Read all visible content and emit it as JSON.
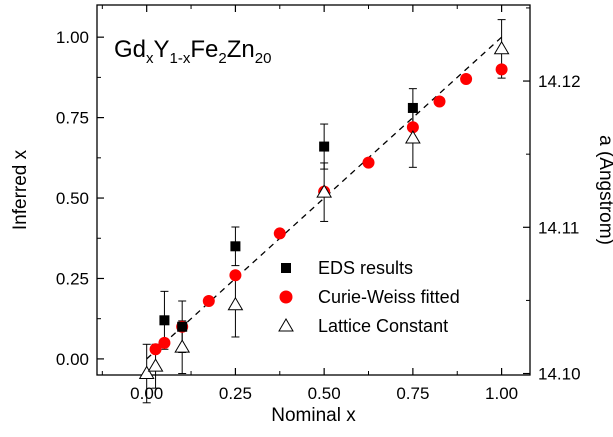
{
  "chart_data": {
    "type": "scatter",
    "title_parts": [
      "Gd",
      "x",
      "Y",
      "1-x",
      "Fe",
      "2",
      "Zn",
      "20"
    ],
    "xlabel": "Nominal x",
    "ylabel": "Inferred x",
    "y2label": "a (Angstrom)",
    "xlim": [
      -0.14,
      1.08
    ],
    "ylim": [
      -0.05,
      1.1
    ],
    "y2lim": [
      14.0999,
      14.1252
    ],
    "x_ticks": [
      0.0,
      0.25,
      0.5,
      0.75,
      1.0
    ],
    "x_tick_labels": [
      "0.00",
      "0.25",
      "0.50",
      "0.75",
      "1.00"
    ],
    "y_ticks": [
      0.0,
      0.25,
      0.5,
      0.75,
      1.0
    ],
    "y_tick_labels": [
      "0.00",
      "0.25",
      "0.50",
      "0.75",
      "1.00"
    ],
    "y2_ticks": [
      14.1,
      14.11,
      14.12
    ],
    "y2_tick_labels": [
      "14.10",
      "14.11",
      "14.12"
    ],
    "grid": false,
    "legend_position": "center-right",
    "reference_line": {
      "style": "dashed",
      "x": [
        0,
        1
      ],
      "y": [
        0,
        1
      ]
    },
    "series": [
      {
        "name": "EDS results",
        "marker": "square",
        "color": "#000000",
        "axis": "left",
        "points": [
          {
            "x": 0.05,
            "y": 0.12,
            "err": 0.09
          },
          {
            "x": 0.1,
            "y": 0.1,
            "err": 0.08
          },
          {
            "x": 0.25,
            "y": 0.35,
            "err": 0.06
          },
          {
            "x": 0.5,
            "y": 0.66,
            "err": 0.07
          },
          {
            "x": 0.75,
            "y": 0.78,
            "err": 0.06
          }
        ]
      },
      {
        "name": "Curie-Weiss fitted",
        "marker": "circle",
        "color": "#ff0000",
        "axis": "left",
        "points": [
          {
            "x": 0.025,
            "y": 0.03
          },
          {
            "x": 0.05,
            "y": 0.05
          },
          {
            "x": 0.1,
            "y": 0.1
          },
          {
            "x": 0.175,
            "y": 0.18
          },
          {
            "x": 0.25,
            "y": 0.26
          },
          {
            "x": 0.375,
            "y": 0.39
          },
          {
            "x": 0.5,
            "y": 0.52
          },
          {
            "x": 0.625,
            "y": 0.61
          },
          {
            "x": 0.75,
            "y": 0.72
          },
          {
            "x": 0.825,
            "y": 0.8
          },
          {
            "x": 0.9,
            "y": 0.87
          },
          {
            "x": 1.0,
            "y": 0.9
          }
        ]
      },
      {
        "name": "Lattice Constant",
        "marker": "triangle-open",
        "color": "#000000",
        "axis": "right",
        "points": [
          {
            "x": 0.0,
            "y": 14.1,
            "err": 0.002
          },
          {
            "x": 0.025,
            "y": 14.1005,
            "err": 0.0015
          },
          {
            "x": 0.1,
            "y": 14.1018,
            "err": 0.0018
          },
          {
            "x": 0.25,
            "y": 14.1047,
            "err": 0.0022
          },
          {
            "x": 0.5,
            "y": 14.1124,
            "err": 0.002
          },
          {
            "x": 0.75,
            "y": 14.1161,
            "err": 0.002
          },
          {
            "x": 1.0,
            "y": 14.1222,
            "err": 0.002
          }
        ]
      }
    ]
  }
}
